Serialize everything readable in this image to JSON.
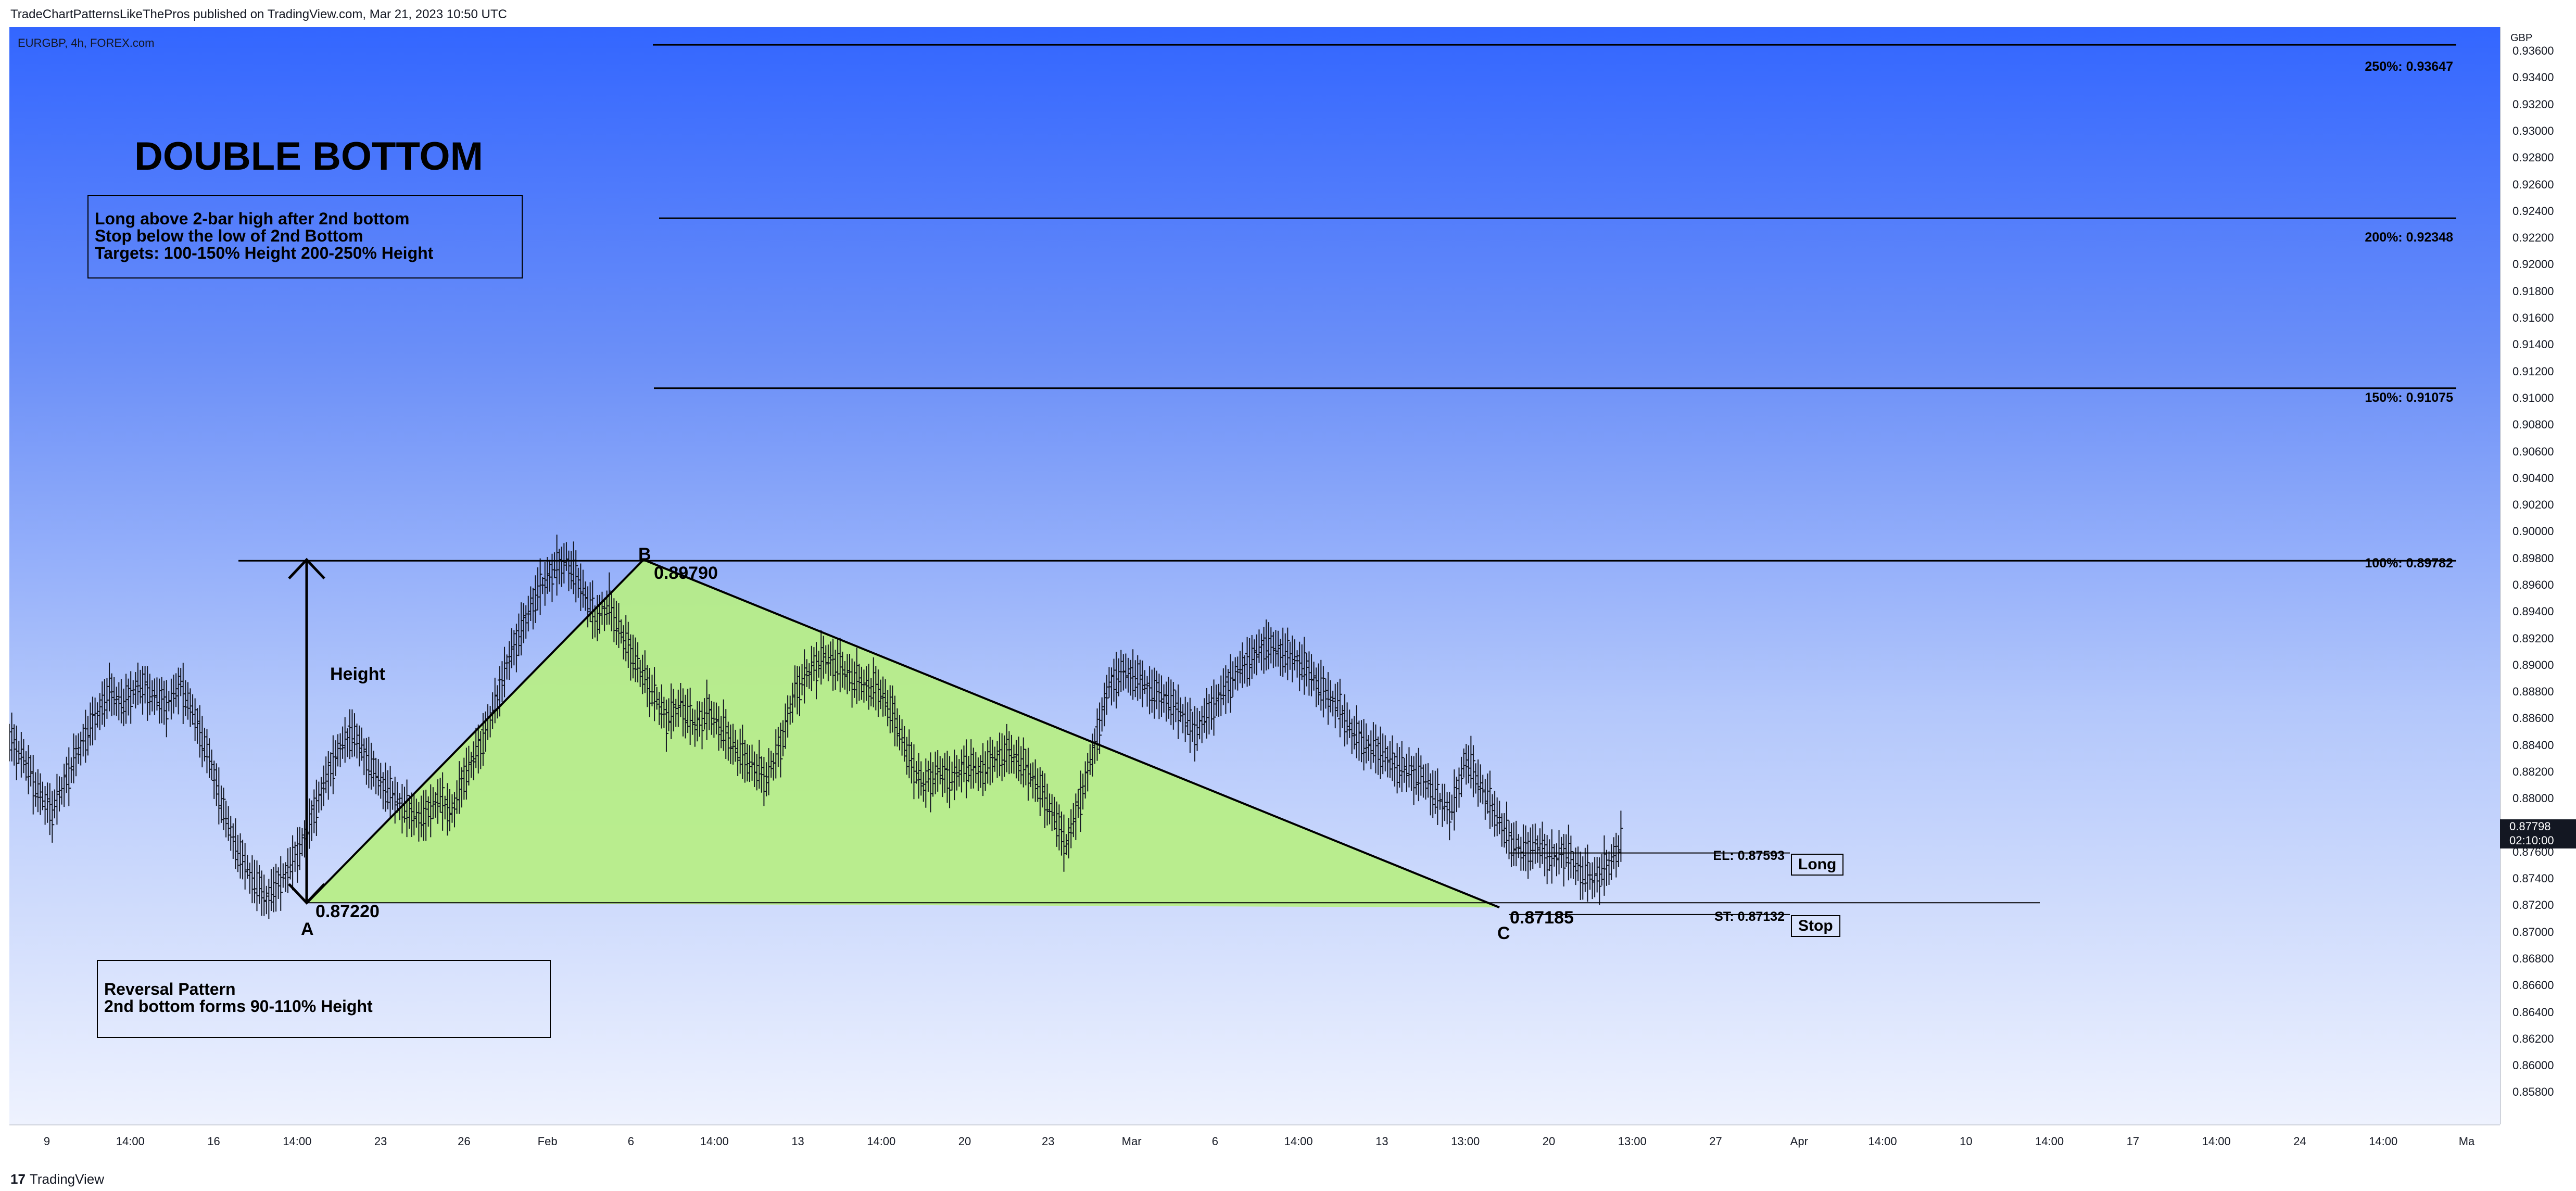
{
  "header": {
    "publisher_line": "TradeChartPatternsLikeThePros published on TradingView.com, Mar 21, 2023 10:50 UTC"
  },
  "footer": {
    "logo_glyph": "17",
    "brand": "TradingView"
  },
  "chart_data": {
    "type": "bar",
    "symbol_line": "EURGBP, 4h, FOREX.com",
    "currency": "GBP",
    "title": "DOUBLE BOTTOM",
    "ylim": [
      0.8556,
      0.9378
    ],
    "grid": false,
    "y_ticks": [
      "0.93600",
      "0.93400",
      "0.93200",
      "0.93000",
      "0.92800",
      "0.92600",
      "0.92400",
      "0.92200",
      "0.92000",
      "0.91800",
      "0.91600",
      "0.91400",
      "0.91200",
      "0.91000",
      "0.90800",
      "0.90600",
      "0.90400",
      "0.90200",
      "0.90000",
      "0.89800",
      "0.89600",
      "0.89400",
      "0.89200",
      "0.89000",
      "0.88800",
      "0.88600",
      "0.88400",
      "0.88200",
      "0.88000",
      "0.87800",
      "0.87600",
      "0.87400",
      "0.87200",
      "0.87000",
      "0.86800",
      "0.86600",
      "0.86400",
      "0.86200",
      "0.86000",
      "0.85800"
    ],
    "x_ticks": [
      "9",
      "14:00",
      "16",
      "14:00",
      "23",
      "26",
      "Feb",
      "6",
      "14:00",
      "13",
      "14:00",
      "20",
      "23",
      "Mar",
      "6",
      "14:00",
      "13",
      "13:00",
      "20",
      "13:00",
      "27",
      "Apr",
      "14:00",
      "10",
      "14:00",
      "17",
      "14:00",
      "24",
      "14:00",
      "Ma"
    ],
    "current_price": {
      "value": "0.87798",
      "countdown": "02:10:00"
    },
    "notes": {
      "strategy": [
        "Long above 2-bar high after 2nd bottom",
        "Stop below the low of 2nd Bottom",
        "Targets: 100-150% Height 200-250% Height"
      ],
      "reversal": [
        "Reversal Pattern",
        "2nd bottom forms 90-110% Height"
      ]
    },
    "pattern_points": [
      {
        "label": "A",
        "price": 0.8722,
        "price_label": "0.87220"
      },
      {
        "label": "B",
        "price": 0.8979,
        "price_label": "0.89790"
      },
      {
        "label": "C",
        "price": 0.87185,
        "price_label": "0.87185"
      }
    ],
    "height_label": "Height",
    "target_levels": [
      {
        "label": "250%: 0.93647",
        "price": 0.93647
      },
      {
        "label": "200%: 0.92348",
        "price": 0.92348
      },
      {
        "label": "150%: 0.91075",
        "price": 0.91075
      },
      {
        "label": "100%: 0.89782",
        "price": 0.89782
      }
    ],
    "entry": {
      "label": "EL: 0.87593",
      "price": 0.87593,
      "tag": "Long"
    },
    "stop": {
      "label": "ST: 0.87132",
      "price": 0.87132,
      "tag": "Stop"
    },
    "colors": {
      "pattern_fill": "#b7ef84",
      "bars": "#131722",
      "background_top": "#3366ff",
      "background_bottom": "#eef2fe"
    },
    "ohlc_path": [
      0.8845,
      0.883,
      0.8805,
      0.879,
      0.8815,
      0.884,
      0.886,
      0.888,
      0.887,
      0.8885,
      0.8878,
      0.887,
      0.8885,
      0.886,
      0.883,
      0.879,
      0.876,
      0.874,
      0.8725,
      0.8738,
      0.8755,
      0.878,
      0.881,
      0.8835,
      0.885,
      0.883,
      0.8812,
      0.88,
      0.879,
      0.8785,
      0.88,
      0.879,
      0.882,
      0.884,
      0.887,
      0.8905,
      0.893,
      0.8955,
      0.897,
      0.8978,
      0.896,
      0.8935,
      0.8945,
      0.892,
      0.89,
      0.888,
      0.886,
      0.887,
      0.8855,
      0.8865,
      0.885,
      0.8835,
      0.8825,
      0.8815,
      0.884,
      0.888,
      0.8895,
      0.8905,
      0.89,
      0.889,
      0.8885,
      0.888,
      0.886,
      0.883,
      0.881,
      0.882,
      0.8815,
      0.8825,
      0.882,
      0.883,
      0.8835,
      0.8825,
      0.881,
      0.879,
      0.8765,
      0.88,
      0.884,
      0.8885,
      0.8895,
      0.889,
      0.888,
      0.8875,
      0.8865,
      0.885,
      0.8865,
      0.888,
      0.8895,
      0.8905,
      0.8915,
      0.891,
      0.8905,
      0.8895,
      0.888,
      0.887,
      0.885,
      0.884,
      0.8835,
      0.8825,
      0.882,
      0.8815,
      0.88,
      0.879,
      0.883,
      0.881,
      0.879,
      0.877,
      0.876,
      0.8765,
      0.8755,
      0.876,
      0.8745,
      0.874,
      0.875,
      0.877
    ]
  }
}
